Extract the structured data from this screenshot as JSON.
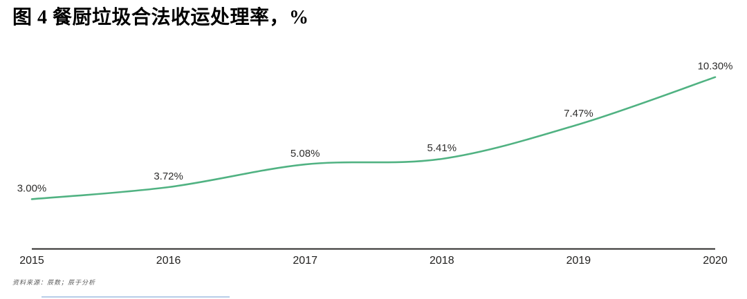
{
  "title": "图 4 餐厨垃圾合法收运处理率，%",
  "source_note": "资料来源：辰数；辰于分析",
  "colors": {
    "line": "#50b282",
    "axis": "#2b2a28",
    "data_label": "#2e2d2c",
    "tick_label": "#1f1e1d",
    "source_text": "#5a5a5a",
    "accent": "#a9c3e4",
    "background": "#ffffff"
  },
  "chart_data": {
    "type": "line",
    "title": "图 4 餐厨垃圾合法收运处理率，%",
    "unit": "%",
    "x_categories": [
      "2015",
      "2016",
      "2017",
      "2018",
      "2019",
      "2020"
    ],
    "values": [
      3.0,
      3.72,
      5.08,
      5.41,
      7.47,
      10.3
    ],
    "point_labels": [
      "3.00%",
      "3.72%",
      "5.08%",
      "5.41%",
      "7.47%",
      "10.30%"
    ],
    "ylim": [
      0,
      11.4
    ],
    "grid": false,
    "legend": "none",
    "smooth": true,
    "y_axis_visible": false,
    "x_axis_visible": true
  }
}
